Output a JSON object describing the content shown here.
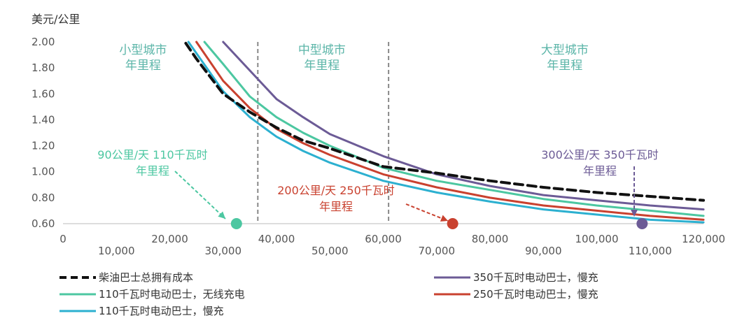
{
  "chart_data": {
    "type": "line",
    "ylabel": "美元/公里",
    "xlim": [
      0,
      120000
    ],
    "ylim": [
      0.6,
      2.0
    ],
    "y_ticks": [
      "2.00",
      "1.80",
      "1.60",
      "1.40",
      "1.20",
      "1.00",
      "0.80",
      "0.60"
    ],
    "y_tick_values": [
      2.0,
      1.8,
      1.6,
      1.4,
      1.2,
      1.0,
      0.8,
      0.6
    ],
    "x_ticks_row1": [
      "0",
      "20,000",
      "40,000",
      "60,000",
      "80,000",
      "100,000",
      "120,000"
    ],
    "x_ticks_row1_values": [
      0,
      20000,
      40000,
      60000,
      80000,
      100000,
      120000
    ],
    "x_ticks_row2": [
      "10,000",
      "30,000",
      "50,000",
      "70,000",
      "90,000",
      "110,000"
    ],
    "x_ticks_row2_values": [
      10000,
      30000,
      50000,
      70000,
      90000,
      110000
    ],
    "grid": false,
    "legend_position": "bottom",
    "series": [
      {
        "name": "柴油巴士总拥有成本",
        "color": "#111111",
        "dashed": true,
        "points": [
          [
            23000,
            1.99
          ],
          [
            25000,
            1.87
          ],
          [
            30000,
            1.6
          ],
          [
            35000,
            1.46
          ],
          [
            40000,
            1.34
          ],
          [
            45000,
            1.24
          ],
          [
            50000,
            1.18
          ],
          [
            60000,
            1.04
          ],
          [
            70000,
            0.99
          ],
          [
            80000,
            0.93
          ],
          [
            90000,
            0.88
          ],
          [
            100000,
            0.84
          ],
          [
            110000,
            0.81
          ],
          [
            120000,
            0.78
          ]
        ]
      },
      {
        "name": "350千瓦时电动巴士，慢充",
        "color": "#6c5b96",
        "dashed": false,
        "points": [
          [
            30000,
            2.0
          ],
          [
            35000,
            1.78
          ],
          [
            40000,
            1.56
          ],
          [
            45000,
            1.42
          ],
          [
            50000,
            1.29
          ],
          [
            60000,
            1.12
          ],
          [
            70000,
            0.98
          ],
          [
            80000,
            0.89
          ],
          [
            90000,
            0.82
          ],
          [
            100000,
            0.78
          ],
          [
            110000,
            0.74
          ],
          [
            120000,
            0.71
          ]
        ]
      },
      {
        "name": "110千瓦时电动巴士，无线充电",
        "color": "#4cc7a1",
        "dashed": false,
        "points": [
          [
            26500,
            2.0
          ],
          [
            30000,
            1.83
          ],
          [
            35000,
            1.58
          ],
          [
            40000,
            1.42
          ],
          [
            45000,
            1.3
          ],
          [
            50000,
            1.2
          ],
          [
            60000,
            1.03
          ],
          [
            70000,
            0.93
          ],
          [
            80000,
            0.86
          ],
          [
            90000,
            0.79
          ],
          [
            100000,
            0.74
          ],
          [
            110000,
            0.7
          ],
          [
            120000,
            0.66
          ]
        ]
      },
      {
        "name": "250千瓦时电动巴士，慢充",
        "color": "#c9412f",
        "dashed": false,
        "points": [
          [
            25000,
            2.0
          ],
          [
            30000,
            1.7
          ],
          [
            35000,
            1.49
          ],
          [
            40000,
            1.33
          ],
          [
            45000,
            1.22
          ],
          [
            50000,
            1.13
          ],
          [
            60000,
            0.98
          ],
          [
            70000,
            0.88
          ],
          [
            80000,
            0.8
          ],
          [
            90000,
            0.74
          ],
          [
            100000,
            0.7
          ],
          [
            110000,
            0.66
          ],
          [
            120000,
            0.63
          ]
        ]
      },
      {
        "name": "110千瓦时电动巴士，慢充",
        "color": "#2cb0d0",
        "dashed": false,
        "points": [
          [
            23500,
            2.0
          ],
          [
            30000,
            1.62
          ],
          [
            35000,
            1.42
          ],
          [
            40000,
            1.27
          ],
          [
            45000,
            1.16
          ],
          [
            50000,
            1.07
          ],
          [
            60000,
            0.93
          ],
          [
            70000,
            0.84
          ],
          [
            80000,
            0.77
          ],
          [
            90000,
            0.71
          ],
          [
            100000,
            0.67
          ],
          [
            110000,
            0.63
          ],
          [
            120000,
            0.61
          ]
        ]
      }
    ],
    "region_dividers": [
      36500,
      61000
    ],
    "regions": [
      {
        "line1": "小型城市",
        "line2": "年里程",
        "center_x": 15000
      },
      {
        "line1": "中型城市",
        "line2": "年里程",
        "center_x": 48500
      },
      {
        "line1": "大型城市",
        "line2": "年里程",
        "center_x": 94000
      }
    ],
    "annotations": [
      {
        "line1": "90公里/天  110千瓦时",
        "line2": "年里程",
        "color": "#4cc7a1",
        "marker_x": 32500,
        "marker_y": 0.6
      },
      {
        "line1": "200公里/天  250千瓦时",
        "line2": "年里程",
        "color": "#c9412f",
        "marker_x": 73000,
        "marker_y": 0.6
      },
      {
        "line1": "300公里/天  350千瓦时",
        "line2": "年里程",
        "color": "#6c5b96",
        "marker_x": 108500,
        "marker_y": 0.6
      }
    ]
  }
}
